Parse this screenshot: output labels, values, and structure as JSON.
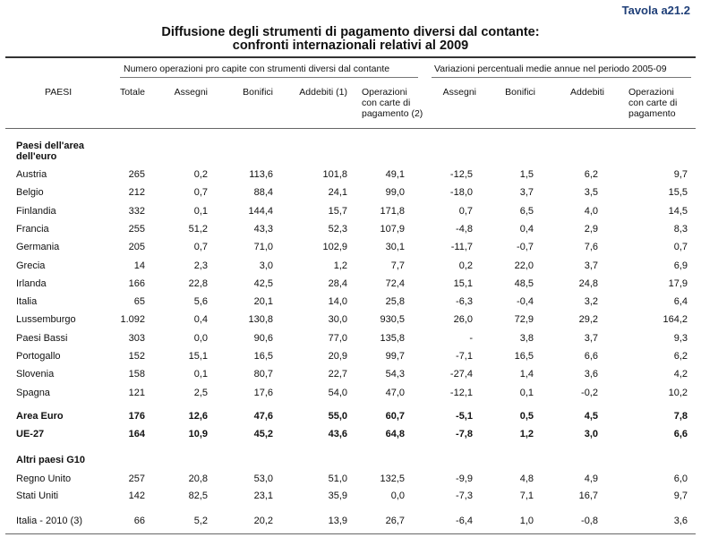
{
  "table_id": "Tavola a21.2",
  "title": {
    "line1": "Diffusione degli strumenti di pagamento diversi dal contante:",
    "line2": "confronti internazionali relativi al 2009"
  },
  "group_headers": {
    "left": "Numero operazioni pro capite con strumenti diversi dal contante",
    "right": "Variazioni percentuali medie annue nel periodo 2005-09"
  },
  "col_headers": {
    "paesi": "PAESI",
    "totale": "Totale",
    "assegni": "Assegni",
    "bonifici": "Bonifici",
    "addebiti": "Addebiti (1)",
    "operazioni": [
      "Operazioni",
      "con carte di",
      "pagamento (2)"
    ],
    "v_assegni": "Assegni",
    "v_bonifici": "Bonifici",
    "v_addebiti": "Addebiti",
    "v_operazioni": [
      "Operazioni",
      "con carte di",
      "pagamento"
    ]
  },
  "sections": {
    "euro_area": [
      "Paesi dell'area",
      "dell'euro"
    ],
    "g10": "Altri paesi G10"
  },
  "rows_euro": [
    [
      "Austria",
      "265",
      "0,2",
      "113,6",
      "101,8",
      "49,1",
      "-12,5",
      "1,5",
      "6,2",
      "9,7"
    ],
    [
      "Belgio",
      "212",
      "0,7",
      "88,4",
      "24,1",
      "99,0",
      "-18,0",
      "3,7",
      "3,5",
      "15,5"
    ],
    [
      "Finlandia",
      "332",
      "0,1",
      "144,4",
      "15,7",
      "171,8",
      "0,7",
      "6,5",
      "4,0",
      "14,5"
    ],
    [
      "Francia",
      "255",
      "51,2",
      "43,3",
      "52,3",
      "107,9",
      "-4,8",
      "0,4",
      "2,9",
      "8,3"
    ],
    [
      "Germania",
      "205",
      "0,7",
      "71,0",
      "102,9",
      "30,1",
      "-11,7",
      "-0,7",
      "7,6",
      "0,7"
    ],
    [
      "Grecia",
      "14",
      "2,3",
      "3,0",
      "1,2",
      "7,7",
      "0,2",
      "22,0",
      "3,7",
      "6,9"
    ],
    [
      "Irlanda",
      "166",
      "22,8",
      "42,5",
      "28,4",
      "72,4",
      "15,1",
      "48,5",
      "24,8",
      "17,9"
    ],
    [
      "Italia",
      "65",
      "5,6",
      "20,1",
      "14,0",
      "25,8",
      "-6,3",
      "-0,4",
      "3,2",
      "6,4"
    ],
    [
      "Lussemburgo",
      "1.092",
      "0,4",
      "130,8",
      "30,0",
      "930,5",
      "26,0",
      "72,9",
      "29,2",
      "164,2"
    ],
    [
      "Paesi Bassi",
      "303",
      "0,0",
      "90,6",
      "77,0",
      "135,8",
      "-",
      "3,8",
      "3,7",
      "9,3"
    ],
    [
      "Portogallo",
      "152",
      "15,1",
      "16,5",
      "20,9",
      "99,7",
      "-7,1",
      "16,5",
      "6,6",
      "6,2"
    ],
    [
      "Slovenia",
      "158",
      "0,1",
      "80,7",
      "22,7",
      "54,3",
      "-27,4",
      "1,4",
      "3,6",
      "4,2"
    ],
    [
      "Spagna",
      "121",
      "2,5",
      "17,6",
      "54,0",
      "47,0",
      "-12,1",
      "0,1",
      "-0,2",
      "10,2"
    ]
  ],
  "rows_totals": [
    [
      "Area Euro",
      "176",
      "12,6",
      "47,6",
      "55,0",
      "60,7",
      "-5,1",
      "0,5",
      "4,5",
      "7,8"
    ],
    [
      "UE-27",
      "164",
      "10,9",
      "45,2",
      "43,6",
      "64,8",
      "-7,8",
      "1,2",
      "3,0",
      "6,6"
    ]
  ],
  "rows_g10": [
    [
      "Regno Unito",
      "257",
      "20,8",
      "53,0",
      "51,0",
      "132,5",
      "-9,9",
      "4,8",
      "4,9",
      "6,0"
    ],
    [
      "Stati Uniti",
      "142",
      "82,5",
      "23,1",
      "35,9",
      "0,0",
      "-7,3",
      "7,1",
      "16,7",
      "9,7"
    ]
  ],
  "rows_italia2010": [
    [
      "Italia - 2010 (3)",
      "66",
      "5,2",
      "20,2",
      "13,9",
      "26,7",
      "-6,4",
      "1,0",
      "-0,8",
      "3,6"
    ]
  ]
}
